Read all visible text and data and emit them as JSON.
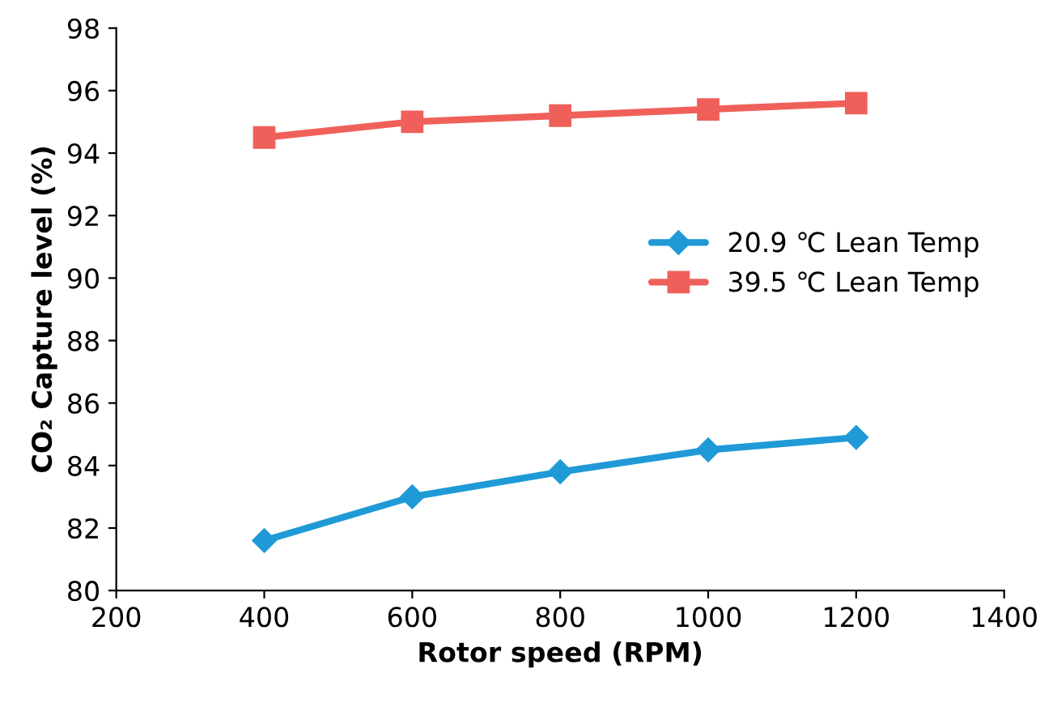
{
  "chart_data": {
    "type": "line",
    "xlabel": "Rotor speed (RPM)",
    "ylabel": "CO₂ Capture level (%)",
    "x": [
      400,
      600,
      800,
      1000,
      1200
    ],
    "series": [
      {
        "name": "20.9 ℃ Lean Temp",
        "color": "#1f9ad6",
        "marker": "diamond",
        "values": [
          81.6,
          83.0,
          83.8,
          84.5,
          84.9
        ]
      },
      {
        "name": "39.5 ℃ Lean Temp",
        "color": "#f0605a",
        "marker": "square",
        "values": [
          94.5,
          95.0,
          95.2,
          95.4,
          95.6
        ]
      }
    ],
    "xlim": [
      200,
      1400
    ],
    "xticks": [
      200,
      400,
      600,
      800,
      1000,
      1200,
      1400
    ],
    "ylim": [
      80,
      98
    ],
    "yticks": [
      80,
      82,
      84,
      86,
      88,
      90,
      92,
      94,
      96,
      98
    ],
    "grid": false,
    "legend": "right",
    "line_style": "solid"
  }
}
